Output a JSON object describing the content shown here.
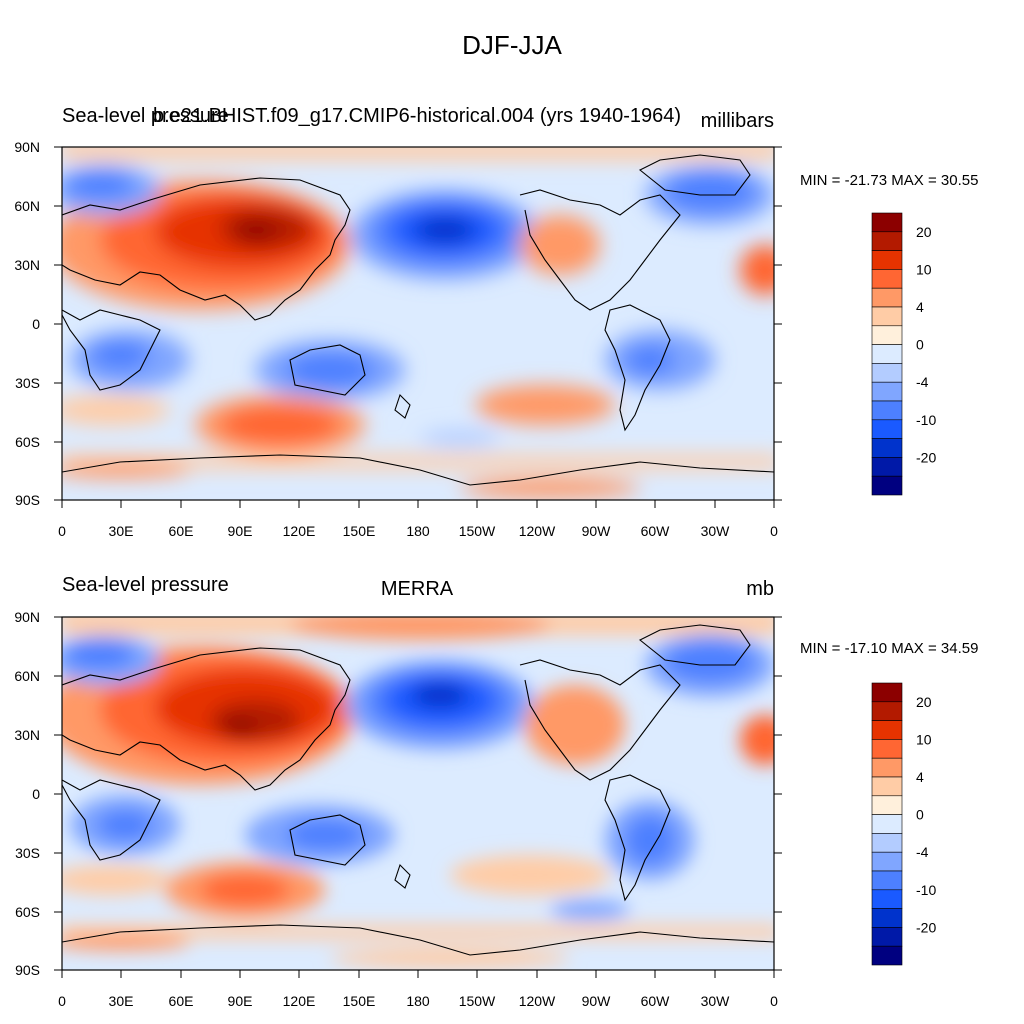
{
  "title": "DJF-JJA",
  "colorbar": {
    "colors": [
      "#000080",
      "#0019a8",
      "#0033cc",
      "#1a5aff",
      "#4d80ff",
      "#80a6ff",
      "#b3ccff",
      "#dcebff",
      "#fff0dc",
      "#ffcca6",
      "#ff9966",
      "#ff6633",
      "#e63300",
      "#b31a00",
      "#8c0000"
    ],
    "labels": [
      "-20",
      "-10",
      "-4",
      "0",
      "4",
      "10",
      "20"
    ]
  },
  "axes": {
    "lat_ticks": [
      "90N",
      "60N",
      "30N",
      "0",
      "30S",
      "60S",
      "90S"
    ],
    "lon_ticks": [
      "0",
      "30E",
      "60E",
      "90E",
      "120E",
      "150E",
      "180",
      "150W",
      "120W",
      "90W",
      "60W",
      "30W",
      "0"
    ]
  },
  "panels": [
    {
      "left_title": "Sea-level pressure",
      "center_title": "b.e21.BHIST.f09_g17.CMIP6-historical.004 (yrs 1940-1964)",
      "right_title": "millibars",
      "minmax": "MIN = -21.73 MAX =  30.55"
    },
    {
      "left_title": "Sea-level pressure",
      "center_title": "MERRA",
      "right_title": "mb",
      "minmax": "MIN = -17.10 MAX =  34.59"
    }
  ]
}
